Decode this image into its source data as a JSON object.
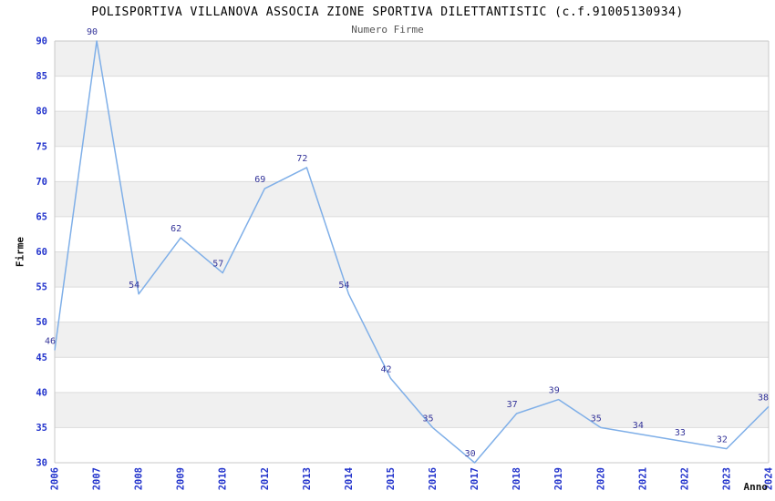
{
  "chart_data": {
    "type": "line",
    "title": "POLISPORTIVA VILLANOVA ASSOCIA ZIONE SPORTIVA DILETTANTISTIC (c.f.91005130934)",
    "subtitle": "Numero Firme",
    "xlabel": "Anno",
    "ylabel": "Firme",
    "categories": [
      "2006",
      "2007",
      "2008",
      "2009",
      "2010",
      "2012",
      "2013",
      "2014",
      "2015",
      "2016",
      "2017",
      "2018",
      "2019",
      "2020",
      "2021",
      "2022",
      "2023",
      "2024"
    ],
    "values": [
      46,
      90,
      54,
      62,
      57,
      69,
      72,
      54,
      42,
      35,
      30,
      37,
      39,
      35,
      34,
      33,
      32,
      38
    ],
    "data_labels": [
      "46",
      "90",
      "54",
      "62",
      "57",
      "69",
      "72",
      "54",
      "42",
      "35",
      "30",
      "37",
      "39",
      "35",
      "34",
      "33",
      "32",
      "38"
    ],
    "ylim": [
      30,
      90
    ],
    "ytick_step": 5,
    "ytick_labels": [
      "30",
      "35",
      "40",
      "45",
      "50",
      "55",
      "60",
      "65",
      "70",
      "75",
      "80",
      "85",
      "90"
    ],
    "grid": "horizontal-bands",
    "legend": "none",
    "colors": {
      "line": "#7FAFE8",
      "data_label": "#333399",
      "tick_label": "#2233CC",
      "band": "#F0F0F0",
      "gridline": "#DCDCDC",
      "border": "#C9C9C9",
      "title": "#000000",
      "subtitle": "#555555",
      "axis_title": "#111111"
    }
  }
}
